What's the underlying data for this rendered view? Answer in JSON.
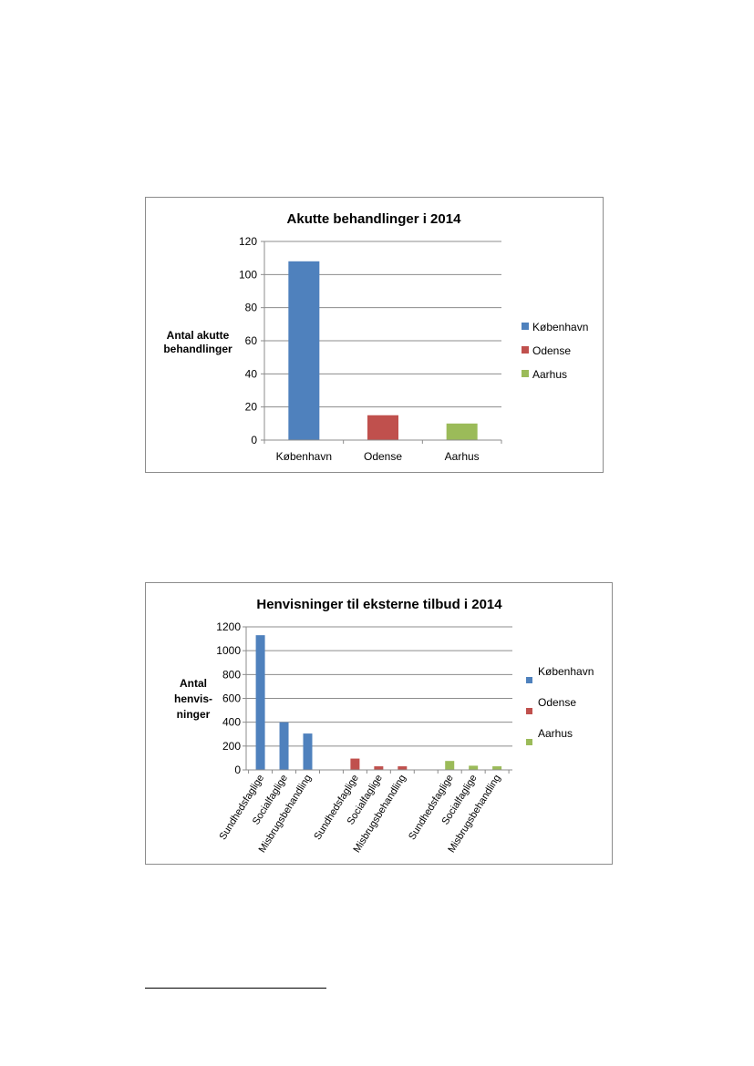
{
  "colors": {
    "kobenhavn": "#4f81bd",
    "odense": "#c0504d",
    "aarhus": "#9bbb59",
    "grid": "#8c8c8c",
    "text": "#000000"
  },
  "charts": {
    "chart1": {
      "title": "Akutte behandlinger i 2014",
      "ylabel": [
        "Antal akutte",
        "behandlinger"
      ],
      "legend": [
        "København",
        "Odense",
        "Aarhus"
      ]
    },
    "chart2": {
      "title": "Henvisninger til eksterne tilbud i 2014",
      "ylabel": [
        "Antal",
        "henvis-",
        "ninger"
      ],
      "legend": [
        "København",
        "Odense",
        "Aarhus"
      ]
    }
  },
  "chart_data": [
    {
      "type": "bar",
      "title": "Akutte behandlinger i 2014",
      "ylabel": "Antal akutte behandlinger",
      "xlabel": "",
      "categories": [
        "København",
        "Odense",
        "Aarhus"
      ],
      "values": [
        108,
        15,
        10
      ],
      "ylim": [
        0,
        120
      ],
      "yticks": [
        0,
        20,
        40,
        60,
        80,
        100,
        120
      ],
      "grid": true,
      "legend_position": "right"
    },
    {
      "type": "bar",
      "title": "Henvisninger til eksterne tilbud i 2014",
      "ylabel": "Antal henvis- ninger",
      "xlabel": "",
      "categories": [
        "Sundhedsfaglige",
        "Socialfaglige",
        "Misbrugsbehandling"
      ],
      "series": [
        {
          "name": "København",
          "values": [
            1130,
            400,
            305
          ]
        },
        {
          "name": "Odense",
          "values": [
            95,
            30,
            30
          ]
        },
        {
          "name": "Aarhus",
          "values": [
            75,
            35,
            30
          ]
        }
      ],
      "ylim": [
        0,
        1200
      ],
      "yticks": [
        0,
        200,
        400,
        600,
        800,
        1000,
        1200
      ],
      "grid": true,
      "legend_position": "right"
    }
  ]
}
